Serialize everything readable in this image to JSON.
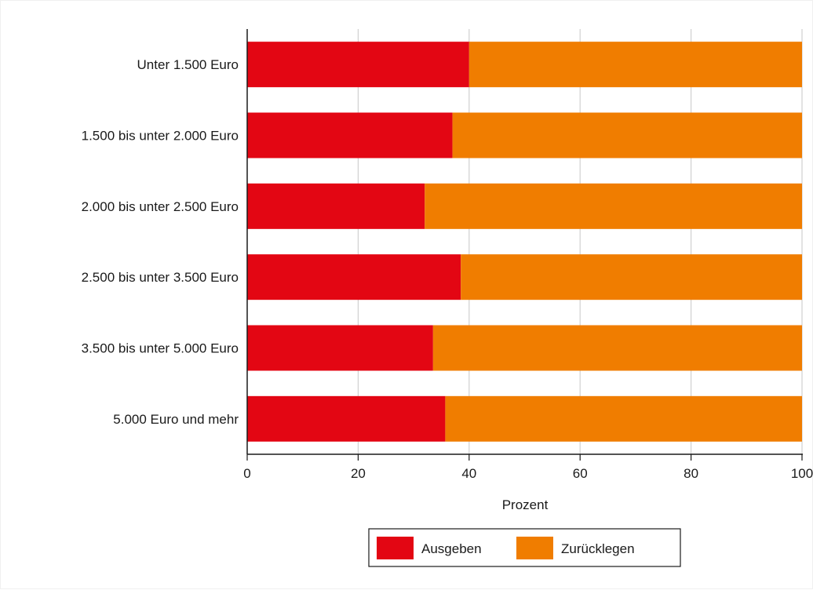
{
  "chart_data": {
    "type": "bar",
    "orientation": "horizontal",
    "stacked": true,
    "categories": [
      "Unter 1.500 Euro",
      "1.500 bis unter 2.000 Euro",
      "2.000 bis unter 2.500 Euro",
      "2.500 bis unter 3.500 Euro",
      "3.500 bis unter 5.000 Euro",
      "5.000 Euro und mehr"
    ],
    "series": [
      {
        "name": "Ausgeben",
        "color": "#e30613",
        "values": [
          40,
          37,
          32,
          38.5,
          33.5,
          35.7
        ]
      },
      {
        "name": "Zurücklegen",
        "color": "#f07d00",
        "values": [
          60,
          63,
          68,
          61.5,
          66.5,
          64.3
        ]
      }
    ],
    "xlabel": "Prozent",
    "ylabel": "",
    "xlim": [
      0,
      100
    ],
    "xticks": [
      0,
      20,
      40,
      60,
      80,
      100
    ],
    "xtick_labels": [
      "0",
      "20",
      "40",
      "60",
      "80",
      "100"
    ],
    "grid": true,
    "legend_position": "bottom-center"
  }
}
